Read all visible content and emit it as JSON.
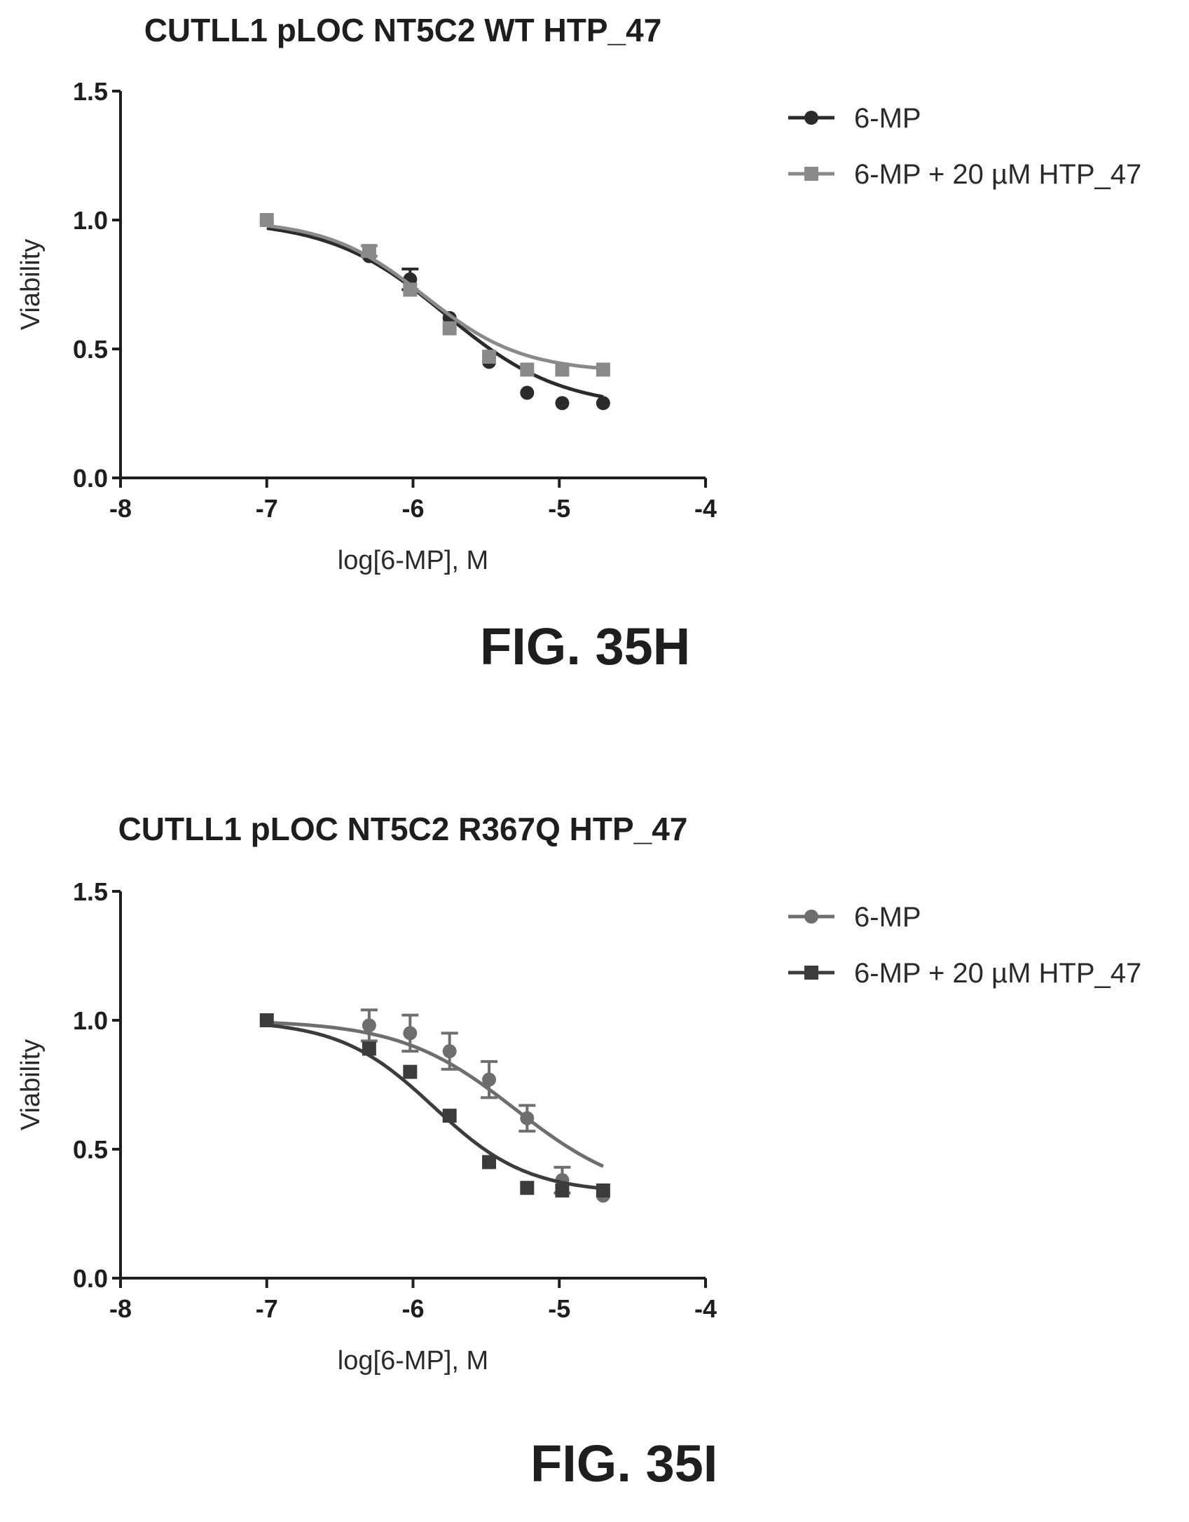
{
  "panels": [
    {
      "id": "panel-h",
      "figure_label": "FIG. 35H",
      "chart_data": {
        "type": "line",
        "title": "CUTLL1 pLOC NT5C2 WT HTP_47",
        "xlabel": "log[6-MP], M",
        "ylabel": "Viability",
        "xlim": [
          -8,
          -4
        ],
        "ylim": [
          0,
          1.5
        ],
        "xticks": [
          -8,
          -7,
          -6,
          -5,
          -4
        ],
        "yticks": [
          0.0,
          0.5,
          1.0,
          1.5
        ],
        "xtick_labels": [
          "-8",
          "-7",
          "-6",
          "-5",
          "-4"
        ],
        "ytick_labels": [
          "0.0",
          "0.5",
          "1.0",
          "1.5"
        ],
        "legend_position": "top-right, outside plot",
        "grid": false,
        "series": [
          {
            "name": "6-MP",
            "marker": "circle",
            "color": "#2b2b2b",
            "x": [
              -7.0,
              -6.3,
              -6.02,
              -5.75,
              -5.48,
              -5.22,
              -4.98,
              -4.7
            ],
            "y": [
              1.0,
              0.86,
              0.77,
              0.62,
              0.45,
              0.33,
              0.29,
              0.29
            ],
            "err": [
              0.0,
              0.0,
              0.04,
              0.0,
              0.0,
              0.0,
              0.0,
              0.0
            ],
            "fit": {
              "top": 1.0,
              "bottom": 0.27,
              "logIC50": -5.78,
              "hill": 1.1
            }
          },
          {
            "name": "6-MP + 20 µM HTP_47",
            "marker": "square",
            "color": "#8a8a8a",
            "x": [
              -7.0,
              -6.3,
              -6.02,
              -5.75,
              -5.48,
              -5.22,
              -4.98,
              -4.7
            ],
            "y": [
              1.0,
              0.88,
              0.73,
              0.58,
              0.47,
              0.42,
              0.42,
              0.42
            ],
            "err": [
              0.0,
              0.02,
              0.0,
              0.0,
              0.0,
              0.0,
              0.0,
              0.0
            ],
            "fit": {
              "top": 1.0,
              "bottom": 0.41,
              "logIC50": -5.92,
              "hill": 1.3
            }
          }
        ]
      }
    },
    {
      "id": "panel-i",
      "figure_label": "FIG. 35I",
      "chart_data": {
        "type": "line",
        "title": "CUTLL1 pLOC NT5C2 R367Q HTP_47",
        "xlabel": "log[6-MP], M",
        "ylabel": "Viability",
        "xlim": [
          -8,
          -4
        ],
        "ylim": [
          0,
          1.5
        ],
        "xticks": [
          -8,
          -7,
          -6,
          -5,
          -4
        ],
        "yticks": [
          0.0,
          0.5,
          1.0,
          1.5
        ],
        "xtick_labels": [
          "-8",
          "-7",
          "-6",
          "-5",
          "-4"
        ],
        "ytick_labels": [
          "0.0",
          "0.5",
          "1.0",
          "1.5"
        ],
        "legend_position": "top-right, outside plot",
        "grid": false,
        "series": [
          {
            "name": "6-MP",
            "marker": "circle",
            "color": "#6e6e6e",
            "x": [
              -7.0,
              -6.3,
              -6.02,
              -5.75,
              -5.48,
              -5.22,
              -4.98,
              -4.7
            ],
            "y": [
              1.0,
              0.98,
              0.95,
              0.88,
              0.77,
              0.62,
              0.38,
              0.32
            ],
            "err": [
              0.0,
              0.06,
              0.07,
              0.07,
              0.07,
              0.05,
              0.05,
              0.0
            ],
            "fit": {
              "top": 1.0,
              "bottom": 0.31,
              "logIC50": -5.3,
              "hill": 1.1
            }
          },
          {
            "name": "6-MP + 20 µM HTP_47",
            "marker": "square",
            "color": "#3c3c3c",
            "x": [
              -7.0,
              -6.3,
              -6.02,
              -5.75,
              -5.48,
              -5.22,
              -4.98,
              -4.7
            ],
            "y": [
              1.0,
              0.89,
              0.8,
              0.63,
              0.45,
              0.35,
              0.34,
              0.34
            ],
            "err": [
              0.0,
              0.0,
              0.0,
              0.0,
              0.0,
              0.0,
              0.0,
              0.0
            ],
            "fit": {
              "top": 1.0,
              "bottom": 0.33,
              "logIC50": -5.86,
              "hill": 1.35
            }
          }
        ]
      }
    }
  ]
}
